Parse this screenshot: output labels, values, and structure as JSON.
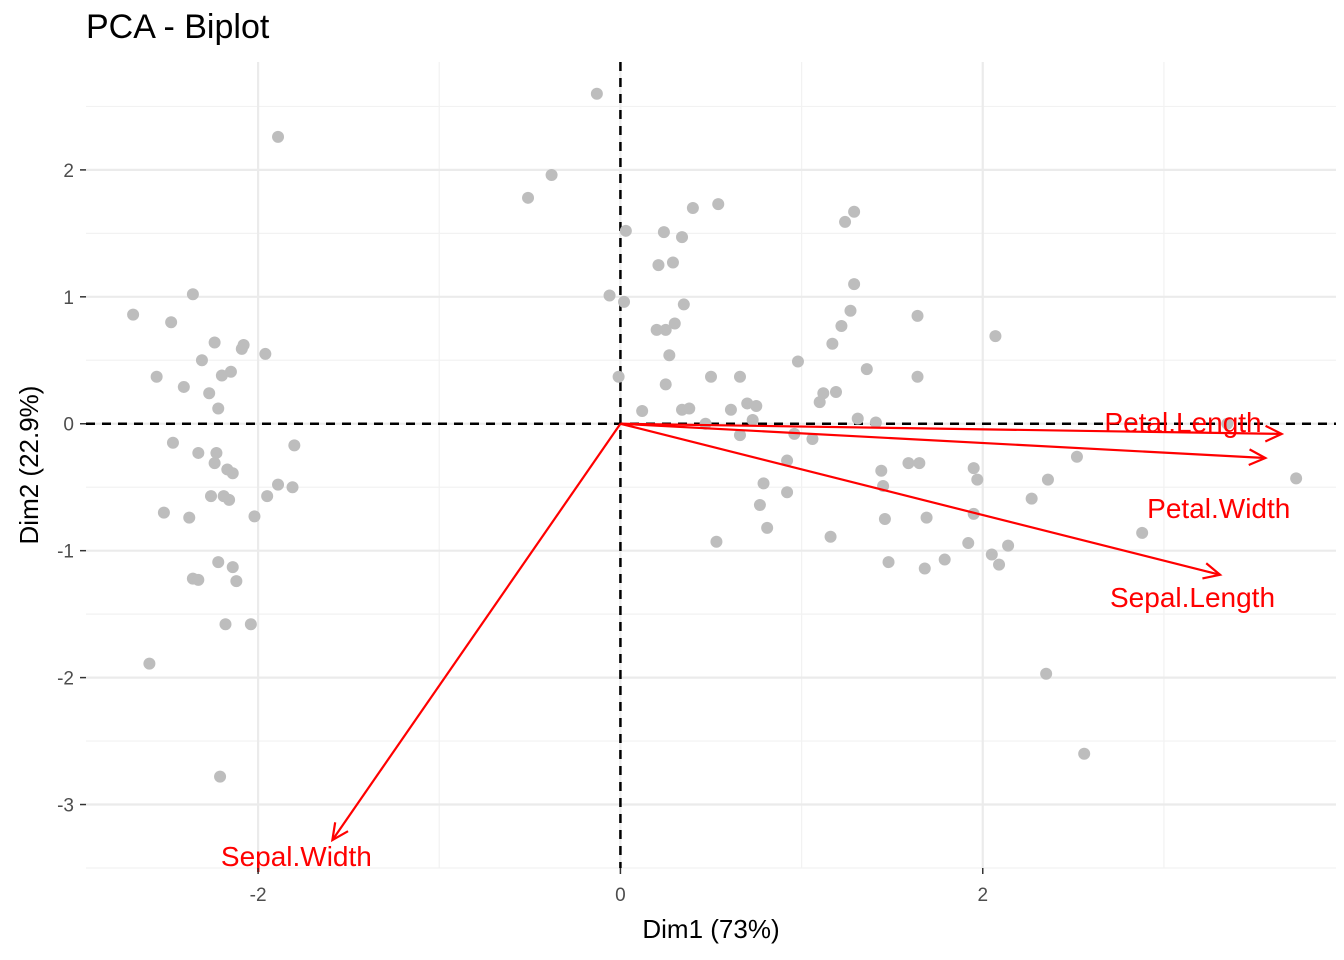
{
  "chart_data": {
    "type": "scatter",
    "title": "PCA - Biplot",
    "xlabel": "Dim1 (73%)",
    "ylabel": "Dim2 (22.9%)",
    "xlim": [
      -2.95,
      3.95
    ],
    "ylim": [
      -3.5,
      2.85
    ],
    "x_ticks": [
      -2,
      0,
      2
    ],
    "x_tick_labels": [
      "-2",
      "0",
      "2"
    ],
    "y_ticks": [
      2,
      1,
      0,
      -1,
      -2,
      -3
    ],
    "y_tick_labels": [
      "2",
      "1",
      "0",
      "-1",
      "-2",
      "-3"
    ],
    "x_minor_ticks": [
      -1,
      1,
      3
    ],
    "y_minor_ticks": [
      2.5,
      1.5,
      0.5,
      -0.5,
      -1.5,
      -2.5,
      -3.5
    ],
    "grid": true,
    "reference_lines": {
      "x": 0,
      "y": 0,
      "style": "dashed"
    },
    "point_color": "#bdbdbd",
    "arrow_color": "#ff0000",
    "points": [
      [
        -2.69,
        0.86
      ],
      [
        -2.56,
        0.37
      ],
      [
        -2.52,
        -0.7
      ],
      [
        -2.6,
        -1.89
      ],
      [
        -2.48,
        0.8
      ],
      [
        -2.47,
        -0.15
      ],
      [
        -2.41,
        0.29
      ],
      [
        -2.38,
        -0.74
      ],
      [
        -2.36,
        1.02
      ],
      [
        -2.36,
        -1.22
      ],
      [
        -2.33,
        -1.23
      ],
      [
        -2.31,
        0.5
      ],
      [
        -2.33,
        -0.23
      ],
      [
        -2.27,
        0.24
      ],
      [
        -2.26,
        -0.57
      ],
      [
        -2.24,
        0.64
      ],
      [
        -2.24,
        -0.31
      ],
      [
        -2.23,
        -0.23
      ],
      [
        -2.22,
        0.12
      ],
      [
        -2.22,
        -1.09
      ],
      [
        -2.2,
        0.38
      ],
      [
        -2.19,
        -0.57
      ],
      [
        -2.18,
        -1.58
      ],
      [
        -2.17,
        -0.36
      ],
      [
        -2.16,
        -0.6
      ],
      [
        -2.15,
        0.41
      ],
      [
        -2.14,
        -0.39
      ],
      [
        -2.14,
        -1.13
      ],
      [
        -2.12,
        -1.24
      ],
      [
        -2.09,
        0.59
      ],
      [
        -2.08,
        0.62
      ],
      [
        -2.04,
        -1.58
      ],
      [
        -2.02,
        -0.73
      ],
      [
        -1.96,
        0.55
      ],
      [
        -1.95,
        -0.57
      ],
      [
        -1.89,
        -0.48
      ],
      [
        -1.89,
        2.26
      ],
      [
        -1.81,
        -0.5
      ],
      [
        -1.8,
        -0.17
      ],
      [
        -2.21,
        -2.78
      ],
      [
        -0.51,
        1.78
      ],
      [
        -0.38,
        1.96
      ],
      [
        -0.13,
        2.6
      ],
      [
        -0.06,
        1.01
      ],
      [
        0.03,
        1.52
      ],
      [
        -0.01,
        0.37
      ],
      [
        0.02,
        0.96
      ],
      [
        0.24,
        1.51
      ],
      [
        0.34,
        1.47
      ],
      [
        0.54,
        1.73
      ],
      [
        0.4,
        1.7
      ],
      [
        0.21,
        1.25
      ],
      [
        0.29,
        1.27
      ],
      [
        0.35,
        0.94
      ],
      [
        0.3,
        0.79
      ],
      [
        0.34,
        0.11
      ],
      [
        0.5,
        0.37
      ],
      [
        0.38,
        0.12
      ],
      [
        0.47,
        0.0
      ],
      [
        0.25,
        0.74
      ],
      [
        0.2,
        0.74
      ],
      [
        0.27,
        0.54
      ],
      [
        0.25,
        0.31
      ],
      [
        0.12,
        0.1
      ],
      [
        0.61,
        0.11
      ],
      [
        0.7,
        0.16
      ],
      [
        0.75,
        0.14
      ],
      [
        0.66,
        0.37
      ],
      [
        0.66,
        -0.09
      ],
      [
        0.73,
        0.03
      ],
      [
        0.53,
        -0.93
      ],
      [
        0.79,
        -0.47
      ],
      [
        0.77,
        -0.64
      ],
      [
        0.81,
        -0.82
      ],
      [
        0.92,
        -0.29
      ],
      [
        0.92,
        -0.54
      ],
      [
        0.98,
        0.49
      ],
      [
        0.96,
        -0.08
      ],
      [
        1.06,
        -0.12
      ],
      [
        1.1,
        0.17
      ],
      [
        1.12,
        0.24
      ],
      [
        1.19,
        0.25
      ],
      [
        1.17,
        0.63
      ],
      [
        1.22,
        0.77
      ],
      [
        1.27,
        0.89
      ],
      [
        1.29,
        1.1
      ],
      [
        1.24,
        1.59
      ],
      [
        1.29,
        1.67
      ],
      [
        1.16,
        -0.89
      ],
      [
        1.31,
        0.04
      ],
      [
        1.41,
        0.01
      ],
      [
        1.36,
        0.43
      ],
      [
        1.44,
        -0.37
      ],
      [
        1.45,
        -0.49
      ],
      [
        1.46,
        -0.75
      ],
      [
        1.48,
        -1.09
      ],
      [
        1.59,
        -0.31
      ],
      [
        1.64,
        0.37
      ],
      [
        1.65,
        -0.31
      ],
      [
        1.69,
        -0.74
      ],
      [
        1.68,
        -1.14
      ],
      [
        1.64,
        0.85
      ],
      [
        1.79,
        -1.07
      ],
      [
        1.92,
        -0.94
      ],
      [
        1.95,
        -0.71
      ],
      [
        1.95,
        -0.35
      ],
      [
        1.97,
        -0.44
      ],
      [
        2.05,
        -1.03
      ],
      [
        2.07,
        0.69
      ],
      [
        2.09,
        -1.11
      ],
      [
        2.14,
        -0.96
      ],
      [
        2.27,
        -0.59
      ],
      [
        2.36,
        -0.44
      ],
      [
        2.52,
        -0.26
      ],
      [
        2.35,
        -1.97
      ],
      [
        2.56,
        -2.6
      ],
      [
        2.88,
        -0.86
      ],
      [
        3.35,
        0.0
      ],
      [
        3.73,
        -0.43
      ]
    ],
    "variables": [
      {
        "name": "Petal.Length",
        "x": 3.65,
        "y": -0.08
      },
      {
        "name": "Petal.Width",
        "x": 3.56,
        "y": -0.27
      },
      {
        "name": "Sepal.Length",
        "x": 3.31,
        "y": -1.19
      },
      {
        "name": "Sepal.Width",
        "x": -1.59,
        "y": -3.28
      }
    ]
  }
}
